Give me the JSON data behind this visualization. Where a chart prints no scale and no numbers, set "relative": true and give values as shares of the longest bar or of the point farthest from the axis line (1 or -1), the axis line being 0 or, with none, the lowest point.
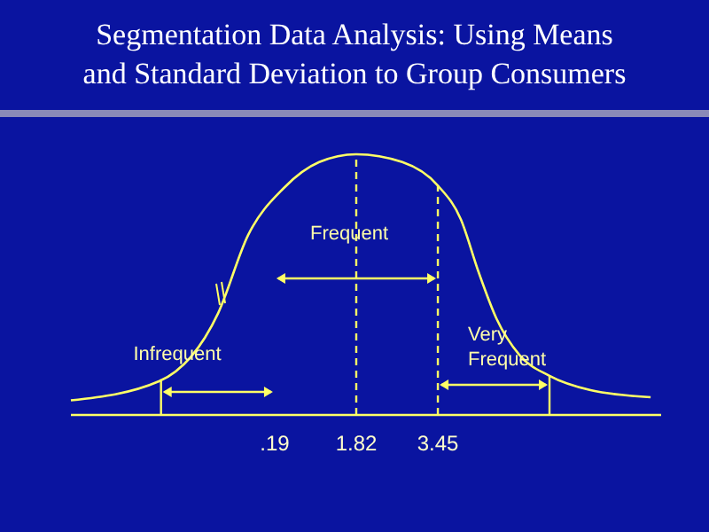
{
  "chart_data": {
    "type": "line",
    "title": "Segmentation Data Analysis: Using Means and Standard Deviation to Group Consumers",
    "x": [
      -3.88,
      -2.11,
      -0.94,
      -0.34,
      0.37,
      1.08,
      1.82,
      2.74,
      3.45,
      3.91,
      4.26,
      4.62,
      5.08,
      5.68,
      6.5,
      7.7
    ],
    "series": [
      {
        "color": "#ffff66",
        "values": [
          0.056,
          0.13,
          0.39,
          0.69,
          0.87,
          0.97,
          1,
          0.97,
          0.88,
          0.75,
          0.55,
          0.37,
          0.23,
          0.15,
          0.095,
          0.068
        ]
      }
    ],
    "relative": true,
    "xlim": [
      -3.88,
      7.91
    ],
    "xticks": [
      {
        "value": 0.19,
        "label": ".19"
      },
      1.82,
      3.45
    ],
    "ref_lines": [
      {
        "axis": "x",
        "value": 1.82,
        "line_style": "dashed"
      },
      {
        "axis": "x",
        "value": 3.45,
        "line_style": "dashed"
      },
      {
        "axis": "x",
        "value": -2.08,
        "line_style": "solid"
      },
      {
        "axis": "x",
        "value": 5.68,
        "line_style": "solid"
      }
    ],
    "annotations": [
      "Frequent",
      "Infrequent",
      "Very Frequent"
    ],
    "grid": false,
    "marker": "none",
    "line_style": "solid"
  }
}
